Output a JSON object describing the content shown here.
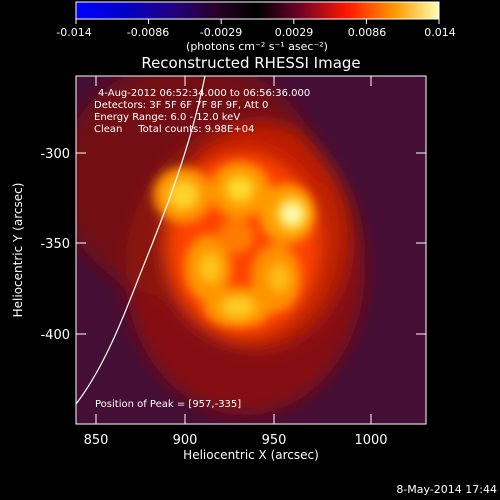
{
  "colorbar": {
    "tick_labels": [
      "-0.014",
      "-0.0086",
      "-0.0029",
      "0.0029",
      "0.0086",
      "0.014"
    ],
    "units_label": "(photons cm⁻² s⁻¹ asec⁻²)"
  },
  "title": "Reconstructed RHESSI Image",
  "info_lines": [
    "4-Aug-2012 06:52:34.000 to 06:56:36.000",
    "Detectors: 3F 5F 6F 7F 8F 9F, Att 0",
    "Energy Range: 6.0 - 12.0 keV",
    "Clean     Total counts: 9.98E+04"
  ],
  "peak_label": "Position of Peak = [957,-335]",
  "x_axis": {
    "label": "Heliocentric X (arcsec)",
    "tick_labels": [
      "850",
      "900",
      "950",
      "1000"
    ]
  },
  "y_axis": {
    "label": "Heliocentric Y (arcsec)",
    "tick_labels": [
      "-300",
      "-350",
      "-400"
    ]
  },
  "timestamp": "8-May-2014 17:44"
}
